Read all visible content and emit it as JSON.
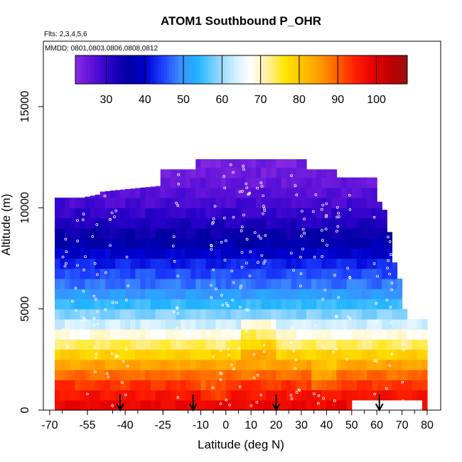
{
  "chart_data": {
    "type": "heatmap",
    "title": "ATOM1 Southbound P_OHR",
    "flights_label": "Flts: 2,3,4,5,6",
    "dates_label": "MMDD: 0801,0803,0806,0808,0812",
    "xlabel": "Latitude (deg N)",
    "ylabel": "Altitude (m)",
    "xlim": [
      -70,
      82
    ],
    "ylim": [
      0,
      17500
    ],
    "x_ticks": [
      -70,
      -55,
      -40,
      -25,
      -10,
      0,
      10,
      20,
      30,
      40,
      50,
      60,
      70,
      80
    ],
    "x_tick_labels": [
      "-70",
      "-55",
      "-40",
      "-25",
      "-10",
      "0",
      "10",
      "20",
      "30",
      "40",
      "50",
      "60",
      "70",
      "80"
    ],
    "y_ticks": [
      0,
      5000,
      10000,
      15000
    ],
    "y_tick_labels": [
      "0",
      "5000",
      "10000",
      "15000"
    ],
    "colorbar": {
      "range": [
        22,
        108
      ],
      "ticks": [
        30,
        40,
        50,
        60,
        70,
        80,
        90,
        100
      ],
      "tick_labels": [
        "30",
        "40",
        "50",
        "60",
        "70",
        "80",
        "90",
        "100"
      ],
      "colors": [
        "#8a2be2",
        "#5a10d8",
        "#2800c8",
        "#0000a0",
        "#0000d0",
        "#1e40ff",
        "#3c8cff",
        "#20b4ff",
        "#80d0ff",
        "#c8ecff",
        "#ffffff",
        "#fff0a0",
        "#ffe600",
        "#ffc000",
        "#ff9a00",
        "#ff6000",
        "#ff2000",
        "#e80000",
        "#c00000",
        "#9a1010"
      ]
    },
    "altitude_profile": [
      {
        "alt": 0,
        "value": 99
      },
      {
        "alt": 1000,
        "value": 95
      },
      {
        "alt": 2000,
        "value": 87
      },
      {
        "alt": 3000,
        "value": 76
      },
      {
        "alt": 4000,
        "value": 66
      },
      {
        "alt": 5000,
        "value": 56
      },
      {
        "alt": 6000,
        "value": 49
      },
      {
        "alt": 7000,
        "value": 44
      },
      {
        "alt": 8000,
        "value": 38
      },
      {
        "alt": 9000,
        "value": 33
      },
      {
        "alt": 10000,
        "value": 29
      },
      {
        "alt": 11000,
        "value": 26
      },
      {
        "alt": 12000,
        "value": 24
      }
    ],
    "coverage_envelope": [
      {
        "lat": -68,
        "top": 10500
      },
      {
        "lat": -57,
        "top": 10500
      },
      {
        "lat": -57,
        "top": 10500
      },
      {
        "lat": -49,
        "top": 10700
      },
      {
        "lat": -49,
        "top": 10800
      },
      {
        "lat": -33,
        "top": 11000
      },
      {
        "lat": -25,
        "top": 11100
      },
      {
        "lat": -25,
        "top": 11900
      },
      {
        "lat": -12,
        "top": 11900
      },
      {
        "lat": -12,
        "top": 12400
      },
      {
        "lat": 31,
        "top": 12400
      },
      {
        "lat": 31,
        "top": 11900
      },
      {
        "lat": 44,
        "top": 11900
      },
      {
        "lat": 44,
        "top": 11500
      },
      {
        "lat": 60,
        "top": 11500
      },
      {
        "lat": 60,
        "top": 10300
      },
      {
        "lat": 62,
        "top": 10300
      },
      {
        "lat": 64,
        "top": 9500
      },
      {
        "lat": 65,
        "top": 8800
      },
      {
        "lat": 66,
        "top": 8000
      },
      {
        "lat": 67,
        "top": 7300
      },
      {
        "lat": 69,
        "top": 6500
      },
      {
        "lat": 70,
        "top": 5800
      },
      {
        "lat": 71,
        "top": 5000
      },
      {
        "lat": 73,
        "top": 4500
      },
      {
        "lat": 80,
        "top": 4500
      },
      {
        "lat": 80,
        "top": 1400
      },
      {
        "lat": 79,
        "top": 900
      },
      {
        "lat": 79,
        "top": 0
      },
      {
        "lat": 49,
        "top": 0
      },
      {
        "lat": 49,
        "top": 0
      }
    ],
    "arrows_lat": [
      -42,
      -13,
      20,
      61
    ],
    "anomalies": [
      {
        "lat_from": 7,
        "lat_to": 19,
        "alt_from": 2600,
        "alt_to": 4400,
        "delta": 5
      },
      {
        "lat_from": 35,
        "lat_to": 43,
        "alt_from": 1200,
        "alt_to": 2600,
        "delta": -4
      },
      {
        "lat_from": -10,
        "lat_to": 0,
        "alt_from": 600,
        "alt_to": 1400,
        "delta": -3
      }
    ]
  }
}
